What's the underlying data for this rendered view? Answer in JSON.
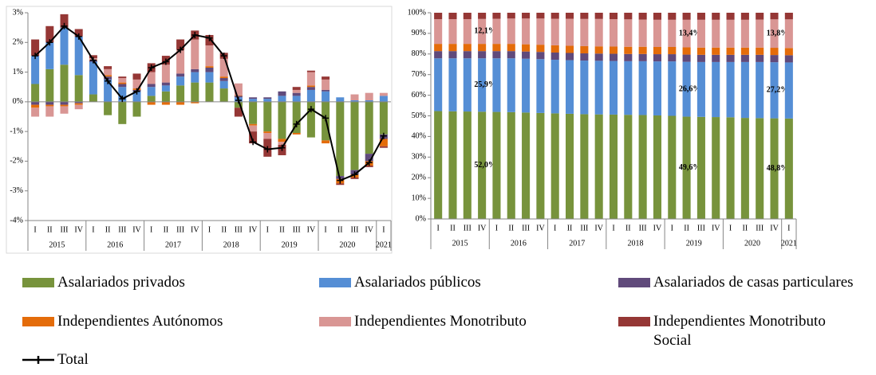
{
  "chart_data": [
    {
      "type": "bar",
      "stacked": true,
      "grid": false,
      "categories": [
        "I",
        "II",
        "III",
        "IV",
        "I",
        "II",
        "III",
        "IV",
        "I",
        "II",
        "III",
        "IV",
        "I",
        "II",
        "III",
        "IV",
        "I",
        "II",
        "III",
        "IV",
        "I",
        "II",
        "III",
        "IV",
        "I"
      ],
      "year_groups": [
        {
          "label": "2015",
          "count": 4
        },
        {
          "label": "2016",
          "count": 4
        },
        {
          "label": "2017",
          "count": 4
        },
        {
          "label": "2018",
          "count": 4
        },
        {
          "label": "2019",
          "count": 4
        },
        {
          "label": "2020",
          "count": 4
        },
        {
          "label": "2021",
          "count": 1
        }
      ],
      "ylim": [
        -4,
        3
      ],
      "yticks": [
        {
          "value": -4,
          "label": "-4%"
        },
        {
          "value": -3,
          "label": "-3%"
        },
        {
          "value": -2,
          "label": "-2%"
        },
        {
          "value": -1,
          "label": "-1%"
        },
        {
          "value": 0,
          "label": "0%"
        },
        {
          "value": 1,
          "label": "1%"
        },
        {
          "value": 2,
          "label": "2%"
        },
        {
          "value": 3,
          "label": "3%"
        }
      ],
      "series": [
        {
          "name": "Asalariados privados",
          "color": "#77933c",
          "values": [
            0.6,
            1.1,
            1.25,
            0.9,
            0.25,
            -0.45,
            -0.75,
            -0.5,
            0.2,
            0.35,
            0.55,
            0.65,
            0.65,
            0.45,
            -0.2,
            -0.75,
            -1.0,
            -1.25,
            -1.05,
            -1.2,
            -1.3,
            -2.5,
            -2.3,
            -1.75,
            -1.1
          ]
        },
        {
          "name": "Asalariados públicos",
          "color": "#558ed5",
          "values": [
            0.95,
            0.9,
            1.25,
            1.3,
            1.1,
            0.75,
            0.5,
            0.35,
            0.3,
            0.2,
            0.3,
            0.35,
            0.35,
            0.25,
            0.15,
            0.1,
            0.1,
            0.2,
            0.2,
            0.4,
            0.35,
            0.15,
            0.05,
            0.05,
            0.2
          ]
        },
        {
          "name": "Asalariados de casas particulares",
          "color": "#604a7b",
          "values": [
            -0.1,
            -0.1,
            -0.1,
            -0.05,
            0.05,
            0.1,
            0.1,
            0.05,
            0.1,
            0.1,
            0.1,
            0.1,
            0.15,
            0.1,
            0.05,
            0.05,
            0.05,
            0.15,
            0.1,
            0.1,
            0.05,
            -0.1,
            -0.15,
            -0.25,
            -0.15
          ]
        },
        {
          "name": "Independientes Autónomos",
          "color": "#e46c0a",
          "values": [
            -0.1,
            -0.05,
            -0.05,
            -0.05,
            0.02,
            0.05,
            0.05,
            0.05,
            -0.1,
            -0.1,
            -0.1,
            -0.05,
            0.05,
            0.05,
            0.02,
            -0.05,
            -0.05,
            -0.1,
            -0.05,
            0.05,
            -0.1,
            -0.15,
            -0.1,
            -0.15,
            -0.25
          ]
        },
        {
          "name": "Independientes Monotributo",
          "color": "#d99694",
          "values": [
            -0.3,
            -0.35,
            -0.25,
            -0.15,
            0.05,
            0.2,
            0.15,
            0.3,
            0.4,
            0.6,
            0.8,
            1.0,
            0.7,
            0.6,
            0.4,
            -0.2,
            -0.2,
            -0.1,
            0.1,
            0.45,
            0.35,
            0.0,
            0.2,
            0.25,
            0.1
          ]
        },
        {
          "name": "Independientes Monotributo Social",
          "color": "#953735",
          "values": [
            0.55,
            0.55,
            0.45,
            0.25,
            0.1,
            0.1,
            0.05,
            0.2,
            0.3,
            0.3,
            0.35,
            0.3,
            0.35,
            0.2,
            -0.3,
            -0.4,
            -0.6,
            -0.35,
            0.1,
            0.05,
            0.1,
            -0.05,
            -0.05,
            -0.05,
            -0.05
          ]
        }
      ],
      "line": {
        "name": "Total",
        "color": "#000000",
        "values": [
          1.55,
          2.0,
          2.55,
          2.2,
          1.4,
          0.7,
          0.1,
          0.35,
          1.15,
          1.35,
          1.75,
          2.25,
          2.15,
          1.55,
          0.05,
          -1.35,
          -1.6,
          -1.55,
          -0.75,
          -0.25,
          -0.55,
          -2.65,
          -2.45,
          -2.05,
          -1.15
        ]
      }
    },
    {
      "type": "bar",
      "stacked": true,
      "grid": false,
      "categories": [
        "I",
        "II",
        "III",
        "IV",
        "I",
        "II",
        "III",
        "IV",
        "I",
        "II",
        "III",
        "IV",
        "I",
        "II",
        "III",
        "IV",
        "I",
        "II",
        "III",
        "IV",
        "I",
        "II",
        "III",
        "IV",
        "I"
      ],
      "year_groups": [
        {
          "label": "2015",
          "count": 4
        },
        {
          "label": "2016",
          "count": 4
        },
        {
          "label": "2017",
          "count": 4
        },
        {
          "label": "2018",
          "count": 4
        },
        {
          "label": "2019",
          "count": 4
        },
        {
          "label": "2020",
          "count": 4
        },
        {
          "label": "2021",
          "count": 1
        }
      ],
      "ylim": [
        0,
        100
      ],
      "yticks": [
        {
          "value": 0,
          "label": "0%"
        },
        {
          "value": 10,
          "label": "10%"
        },
        {
          "value": 20,
          "label": "20%"
        },
        {
          "value": 30,
          "label": "30%"
        },
        {
          "value": 40,
          "label": "40%"
        },
        {
          "value": 50,
          "label": "50%"
        },
        {
          "value": 60,
          "label": "60%"
        },
        {
          "value": 70,
          "label": "70%"
        },
        {
          "value": 80,
          "label": "80%"
        },
        {
          "value": 90,
          "label": "90%"
        },
        {
          "value": 100,
          "label": "100%"
        }
      ],
      "series": [
        {
          "name": "Asalariados privados",
          "color": "#77933c",
          "values": [
            52.3,
            52.2,
            52.1,
            52.0,
            51.9,
            51.8,
            51.6,
            51.4,
            51.2,
            51.0,
            50.8,
            50.7,
            50.6,
            50.5,
            50.4,
            50.2,
            50.0,
            49.6,
            49.5,
            49.4,
            49.3,
            49.0,
            48.9,
            48.8,
            48.7
          ],
          "value_labels": [
            null,
            null,
            null,
            "52,0%",
            null,
            null,
            null,
            null,
            null,
            null,
            null,
            null,
            null,
            null,
            null,
            null,
            null,
            "49,6%",
            null,
            null,
            null,
            null,
            null,
            "48,8%",
            null
          ]
        },
        {
          "name": "Asalariados públicos",
          "color": "#558ed5",
          "values": [
            25.6,
            25.7,
            25.8,
            25.9,
            26.0,
            26.1,
            26.1,
            26.1,
            26.0,
            26.0,
            26.0,
            26.0,
            26.0,
            26.0,
            26.1,
            26.2,
            26.4,
            26.6,
            26.6,
            26.7,
            26.8,
            27.1,
            27.2,
            27.2,
            27.2
          ],
          "value_labels": [
            null,
            null,
            null,
            "25,9%",
            null,
            null,
            null,
            null,
            null,
            null,
            null,
            null,
            null,
            null,
            null,
            null,
            null,
            "26,6%",
            null,
            null,
            null,
            null,
            null,
            "27,2%",
            null
          ]
        },
        {
          "name": "Asalariados de casas particulares",
          "color": "#604a7b",
          "values": [
            3.5,
            3.5,
            3.5,
            3.5,
            3.5,
            3.5,
            3.5,
            3.5,
            3.5,
            3.5,
            3.5,
            3.5,
            3.5,
            3.5,
            3.5,
            3.5,
            3.5,
            3.5,
            3.5,
            3.5,
            3.5,
            3.5,
            3.5,
            3.5,
            3.5
          ]
        },
        {
          "name": "Independientes Autónomos",
          "color": "#e46c0a",
          "values": [
            3.5,
            3.5,
            3.5,
            3.5,
            3.5,
            3.5,
            3.5,
            3.5,
            3.5,
            3.5,
            3.5,
            3.5,
            3.5,
            3.5,
            3.5,
            3.5,
            3.5,
            3.5,
            3.5,
            3.5,
            3.5,
            3.5,
            3.5,
            3.5,
            3.5
          ]
        },
        {
          "name": "Independientes Monotributo",
          "color": "#d99694",
          "values": [
            12.0,
            12.0,
            12.0,
            12.1,
            12.2,
            12.3,
            12.5,
            12.7,
            12.9,
            13.1,
            13.2,
            13.3,
            13.3,
            13.3,
            13.2,
            13.2,
            13.2,
            13.4,
            13.5,
            13.5,
            13.5,
            13.5,
            13.6,
            13.8,
            13.9
          ],
          "value_labels": [
            null,
            null,
            null,
            "12,1%",
            null,
            null,
            null,
            null,
            null,
            null,
            null,
            null,
            null,
            null,
            null,
            null,
            null,
            "13,4%",
            null,
            null,
            null,
            null,
            null,
            "13,8%",
            null
          ]
        },
        {
          "name": "Independientes Monotributo Social",
          "color": "#953735",
          "values": [
            3.1,
            3.1,
            3.1,
            3.0,
            2.9,
            2.8,
            2.8,
            2.8,
            2.9,
            2.9,
            3.0,
            3.0,
            3.1,
            3.2,
            3.3,
            3.4,
            3.4,
            3.4,
            3.4,
            3.4,
            3.4,
            3.4,
            3.3,
            3.2,
            3.2
          ]
        }
      ]
    }
  ]
}
